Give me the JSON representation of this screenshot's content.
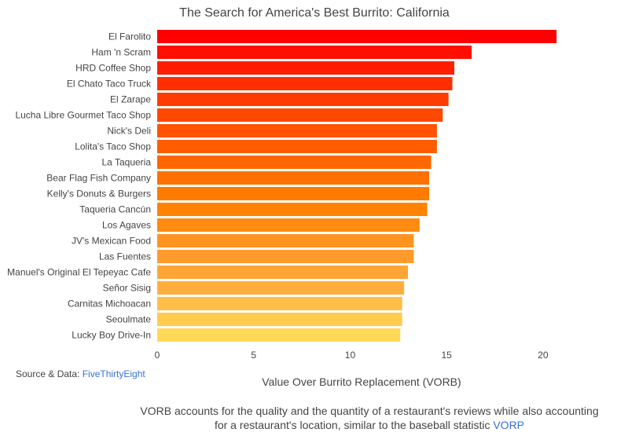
{
  "chart_data": {
    "type": "bar",
    "orientation": "horizontal",
    "title": "The Search for America's Best Burrito: California",
    "xlabel": "Value Over Burrito Replacement (VORB)",
    "ylabel": "",
    "xlim": [
      0,
      22
    ],
    "xticks": [
      "0",
      "5",
      "10",
      "15",
      "20"
    ],
    "grid": false,
    "categories": [
      "El Farolito",
      "Ham 'n Scram",
      "HRD Coffee Shop",
      "El Chato Taco Truck",
      "El Zarape",
      "Lucha Libre Gourmet Taco Shop",
      "Nick's Deli",
      "Lolita's Taco Shop",
      "La Taqueria",
      "Bear Flag Fish Company",
      "Kelly's Donuts & Burgers",
      "Taqueria Cancún",
      "Los Agaves",
      "JV's Mexican Food",
      "Las Fuentes",
      "Manuel's Original El Tepeyac Cafe",
      "Señor Sisig",
      "Carnitas Michoacan",
      "Seoulmate",
      "Lucky Boy Drive-In"
    ],
    "values": [
      20.7,
      16.3,
      15.4,
      15.3,
      15.1,
      14.8,
      14.5,
      14.5,
      14.2,
      14.1,
      14.1,
      14.0,
      13.6,
      13.3,
      13.3,
      13.0,
      12.8,
      12.7,
      12.7,
      12.6
    ],
    "colors": [
      "#ff0000",
      "#ff0f00",
      "#ff1f00",
      "#ff2f00",
      "#ff3c00",
      "#ff4800",
      "#ff5300",
      "#ff5d00",
      "#ff6700",
      "#ff7100",
      "#ff7b00",
      "#ff8300",
      "#ff8b10",
      "#ff9320",
      "#ff9b2c",
      "#ffa536",
      "#ffae3e",
      "#ffbe48",
      "#ffcc50",
      "#ffd956"
    ]
  },
  "source": {
    "prefix": "Source & Data:",
    "link": "FiveThirtyEight"
  },
  "note": {
    "text_1": "VORB accounts for the quality and the quantity of a restaurant's reviews while also accounting",
    "text_2": "for a restaurant's location, similar to the baseball statistic",
    "link": "VORP"
  }
}
